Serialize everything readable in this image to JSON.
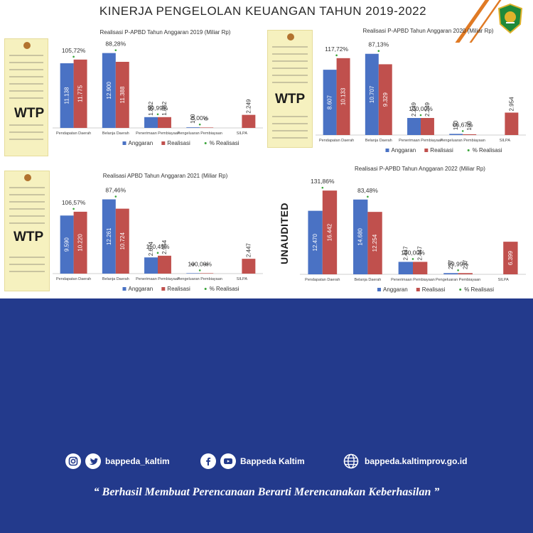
{
  "title": "KINERJA PENGELOLAN KEUANGAN TAHUN 2019-2022",
  "legend_labels": [
    "Anggaran",
    "Realisasi",
    "% Realisasi"
  ],
  "colors": {
    "anggaran": "#4a72c4",
    "realisasi": "#c0504d",
    "pct": "#3aa53a",
    "bottom_bg": "#233a8c",
    "accent": "#e07a24"
  },
  "doc_stamps": [
    "WTP",
    "WTP",
    "WTP"
  ],
  "unaudited_label": "UNAUDITED",
  "chart_data": [
    {
      "type": "bar",
      "title": "Realisasi P-APBD Tahun Anggaran 2019 (Miliar Rp)",
      "categories": [
        "Pendapatan Daerah",
        "Belanja Daerah",
        "Penerimaan Pembiayaan",
        "Pengeluaran Pembiayaan",
        "SILPA"
      ],
      "series": [
        {
          "name": "Anggaran",
          "values": [
            11138,
            12900,
            1862,
            100,
            null
          ],
          "labels": [
            "11.138",
            "12.900",
            "1.862",
            "100",
            ""
          ]
        },
        {
          "name": "Realisasi",
          "values": [
            11775,
            11388,
            1862,
            0,
            2249
          ],
          "labels": [
            "11.775",
            "11.388",
            "1.862",
            "0",
            "2.249"
          ]
        },
        {
          "name": "% Realisasi",
          "labels": [
            "105,72%",
            "88,28%",
            "99,99%",
            "0,00%",
            ""
          ]
        }
      ]
    },
    {
      "type": "bar",
      "title": "Realisasi P-APBD Tahun Anggaran 2020 (Miliar Rp)",
      "categories": [
        "Pendapatan Daerah",
        "Belanja Daerah",
        "Penerimaan Pembiayaan",
        "Pengeluaran Pembiayaan",
        "SILPA"
      ],
      "series": [
        {
          "name": "Anggaran",
          "values": [
            8607,
            10707,
            2249,
            150,
            null
          ],
          "labels": [
            "8.607",
            "10.707",
            "2.249",
            "150",
            ""
          ]
        },
        {
          "name": "Realisasi",
          "values": [
            10133,
            9329,
            2249,
            100,
            2954
          ],
          "labels": [
            "10.133",
            "9.329",
            "2.249",
            "100",
            "2.954"
          ]
        },
        {
          "name": "% Realisasi",
          "labels": [
            "117,72%",
            "87,13%",
            "100,00%",
            "66,67%",
            ""
          ]
        }
      ]
    },
    {
      "type": "bar",
      "title": "Realisasi APBD Tahun Anggaran 2021 (Miliar Rp)",
      "categories": [
        "Pendapatan Daerah",
        "Belanja Daerah",
        "Penerimaan Pembiayaan",
        "Pengeluaran Pembiayaan",
        "SILPA"
      ],
      "series": [
        {
          "name": "Anggaran",
          "values": [
            9590,
            12261,
            2674,
            4,
            null
          ],
          "labels": [
            "9.590",
            "12.261",
            "2.674",
            "4",
            ""
          ]
        },
        {
          "name": "Realisasi",
          "values": [
            10220,
            10724,
            2954,
            4,
            2447
          ],
          "labels": [
            "10.220",
            "10.724",
            "2.954",
            "4",
            "2.447"
          ]
        },
        {
          "name": "% Realisasi",
          "labels": [
            "106,57%",
            "87,46%",
            "110,45%",
            "100,00%",
            ""
          ]
        }
      ]
    },
    {
      "type": "bar",
      "title": "Realisasi P-APBD Tahun Anggaran 2022 (Miliar Rp)",
      "categories": [
        "Pendapatan Daerah",
        "Belanja Daerah",
        "Penerimaan Pembiayaan",
        "Pengeluaran Pembiayaan",
        "SILPA"
      ],
      "series": [
        {
          "name": "Anggaran",
          "values": [
            12470,
            14680,
            2447,
            237,
            null
          ],
          "labels": [
            "12.470",
            "14.680",
            "2.447",
            "237",
            ""
          ]
        },
        {
          "name": "Realisasi",
          "values": [
            16442,
            12254,
            2447,
            237,
            6399
          ],
          "labels": [
            "16.442",
            "12.254",
            "2.447",
            "237",
            "6.399"
          ]
        },
        {
          "name": "% Realisasi",
          "labels": [
            "131,86%",
            "83,48%",
            "100,00%",
            "99,99%",
            ""
          ]
        }
      ]
    }
  ],
  "footer": {
    "instagram_twitter_handle": "bappeda_kaltim",
    "facebook_youtube_name": "Bappeda Kaltim",
    "website": "bappeda.kaltimprov.go.id",
    "quote": "“ Berhasil  Membuat Perencanaan Berarti Merencanakan Keberhasilan ”"
  }
}
